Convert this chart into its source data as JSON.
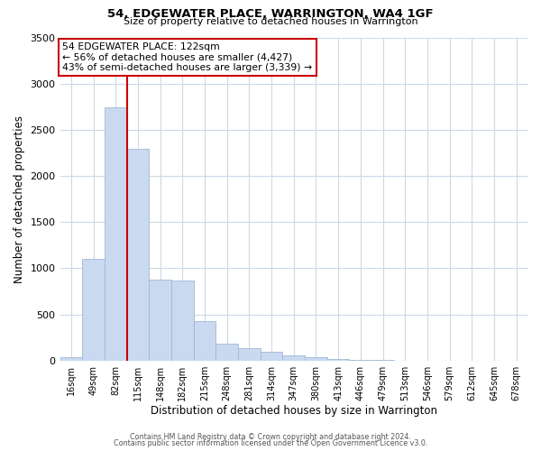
{
  "title": "54, EDGEWATER PLACE, WARRINGTON, WA4 1GF",
  "subtitle": "Size of property relative to detached houses in Warrington",
  "xlabel": "Distribution of detached houses by size in Warrington",
  "ylabel": "Number of detached properties",
  "bar_labels": [
    "16sqm",
    "49sqm",
    "82sqm",
    "115sqm",
    "148sqm",
    "182sqm",
    "215sqm",
    "248sqm",
    "281sqm",
    "314sqm",
    "347sqm",
    "380sqm",
    "413sqm",
    "446sqm",
    "479sqm",
    "513sqm",
    "546sqm",
    "579sqm",
    "612sqm",
    "645sqm",
    "678sqm"
  ],
  "bar_values": [
    40,
    1100,
    2740,
    2290,
    880,
    870,
    430,
    185,
    130,
    95,
    55,
    35,
    20,
    10,
    5,
    0,
    0,
    0,
    0,
    0,
    0
  ],
  "bar_color": "#c9d9f0",
  "bar_edge_color": "#a0b8d8",
  "vline_color": "#cc0000",
  "vline_pos": 2.5,
  "annotation_text": "54 EDGEWATER PLACE: 122sqm\n← 56% of detached houses are smaller (4,427)\n43% of semi-detached houses are larger (3,339) →",
  "annotation_box_color": "#ffffff",
  "annotation_box_edge_color": "#cc0000",
  "ylim": [
    0,
    3500
  ],
  "yticks": [
    0,
    500,
    1000,
    1500,
    2000,
    2500,
    3000,
    3500
  ],
  "footer1": "Contains HM Land Registry data © Crown copyright and database right 2024.",
  "footer2": "Contains public sector information licensed under the Open Government Licence v3.0.",
  "bg_color": "#ffffff",
  "grid_color": "#ccd9e8"
}
